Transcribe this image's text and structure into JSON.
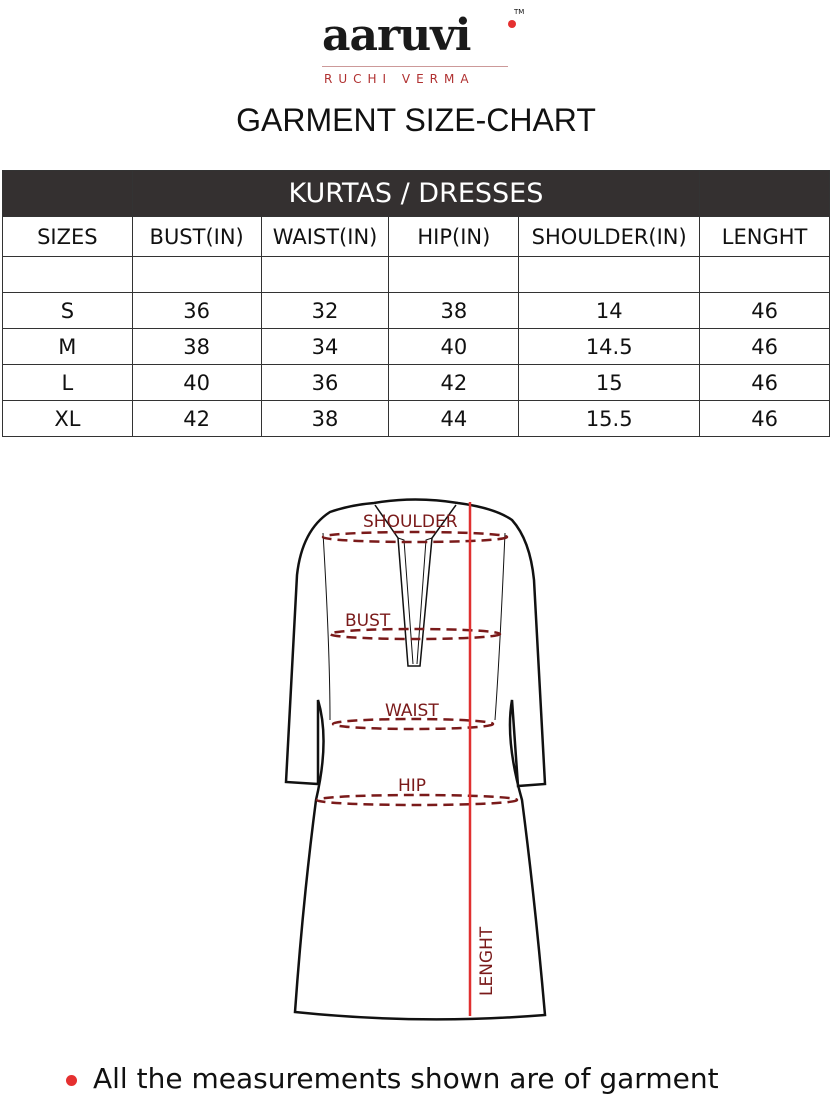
{
  "brand": {
    "name": "aaruvi",
    "tm": "TM",
    "subtitle": "RUCHI VERMA"
  },
  "title": "GARMENT SIZE-CHART",
  "table": {
    "category": "KURTAS / DRESSES",
    "headers": [
      "SIZES",
      "BUST(IN)",
      "WAIST(IN)",
      "HIP(IN)",
      "SHOULDER(IN)",
      "LENGHT"
    ],
    "rows": [
      [
        "S",
        "36",
        "32",
        "38",
        "14",
        "46"
      ],
      [
        "M",
        "38",
        "34",
        "40",
        "14.5",
        "46"
      ],
      [
        "L",
        "40",
        "36",
        "42",
        "15",
        "46"
      ],
      [
        "XL",
        "42",
        "38",
        "44",
        "15.5",
        "46"
      ]
    ]
  },
  "diagram": {
    "labels": {
      "shoulder": "SHOULDER",
      "bust": "BUST",
      "waist": "WAIST",
      "hip": "HIP",
      "length": "LENGHT"
    },
    "label_color": "#7a1a1a",
    "length_line_color": "#e03030"
  },
  "note": "All the measurements shown are of garment"
}
